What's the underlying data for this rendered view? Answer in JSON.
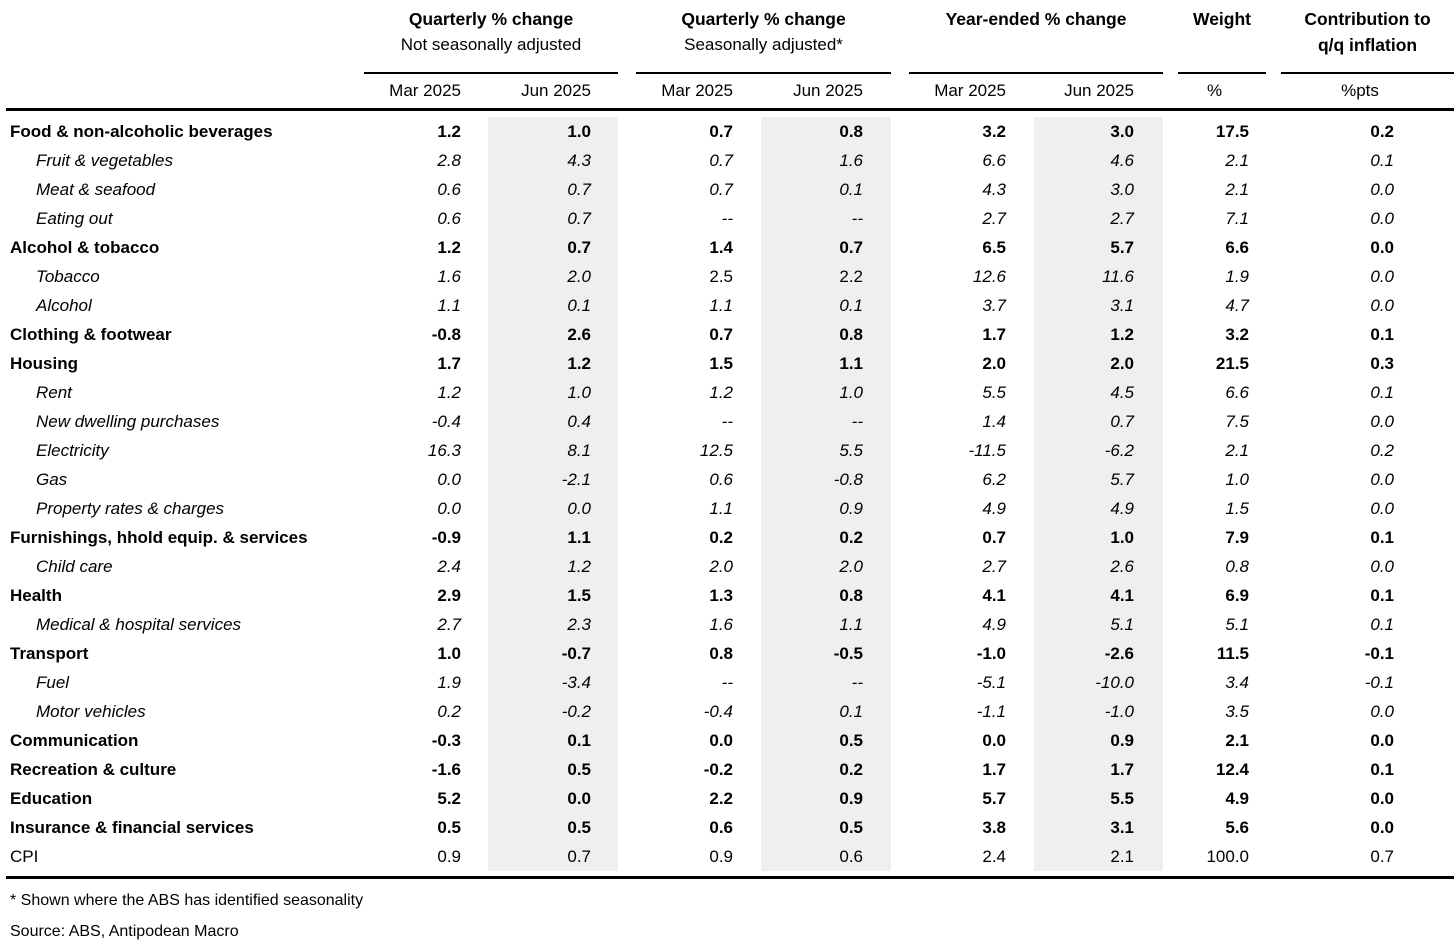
{
  "colors": {
    "shaded_column": "#efefef",
    "text": "#000000",
    "background": "#ffffff"
  },
  "table": {
    "col_keys": [
      "nsa_mar",
      "nsa_jun",
      "sa_mar",
      "sa_jun",
      "ye_mar",
      "ye_jun",
      "weight",
      "contribution"
    ],
    "col_groups": [
      {
        "title_line1": "Quarterly % change",
        "title_line2": "Not seasonally adjusted",
        "sub": [
          "Mar 2025",
          "Jun 2025"
        ]
      },
      {
        "title_line1": "Quarterly % change",
        "title_line2": "Seasonally adjusted*",
        "sub": [
          "Mar 2025",
          "Jun 2025"
        ]
      },
      {
        "title_line1": "Year-ended % change",
        "title_line2": "",
        "sub": [
          "Mar 2025",
          "Jun 2025"
        ]
      },
      {
        "title_line1": "Weight",
        "title_line2": "",
        "sub": [
          "%"
        ]
      },
      {
        "title_line1": "Contribution to",
        "title_line2": "q/q inflation",
        "sub": [
          "%pts"
        ]
      }
    ],
    "rows": [
      {
        "label": "Food & non-alcoholic beverages",
        "emphasis": "bold",
        "values": [
          "1.2",
          "1.0",
          "0.7",
          "0.8",
          "3.2",
          "3.0",
          "17.5",
          "0.2"
        ]
      },
      {
        "label": "Fruit & vegetables",
        "emphasis": "italic",
        "values": [
          "2.8",
          "4.3",
          "0.7",
          "1.6",
          "6.6",
          "4.6",
          "2.1",
          "0.1"
        ]
      },
      {
        "label": "Meat & seafood",
        "emphasis": "italic",
        "values": [
          "0.6",
          "0.7",
          "0.7",
          "0.1",
          "4.3",
          "3.0",
          "2.1",
          "0.0"
        ]
      },
      {
        "label": "Eating out",
        "emphasis": "italic",
        "values": [
          "0.6",
          "0.7",
          "--",
          "--",
          "2.7",
          "2.7",
          "7.1",
          "0.0"
        ]
      },
      {
        "label": "Alcohol & tobacco",
        "emphasis": "bold",
        "values": [
          "1.2",
          "0.7",
          "1.4",
          "0.7",
          "6.5",
          "5.7",
          "6.6",
          "0.0"
        ]
      },
      {
        "label": "Tobacco",
        "emphasis": "italic",
        "sa_plain": true,
        "values": [
          "1.6",
          "2.0",
          "2.5",
          "2.2",
          "12.6",
          "11.6",
          "1.9",
          "0.0"
        ]
      },
      {
        "label": "Alcohol",
        "emphasis": "italic",
        "values": [
          "1.1",
          "0.1",
          "1.1",
          "0.1",
          "3.7",
          "3.1",
          "4.7",
          "0.0"
        ]
      },
      {
        "label": "Clothing & footwear",
        "emphasis": "bold",
        "values": [
          "-0.8",
          "2.6",
          "0.7",
          "0.8",
          "1.7",
          "1.2",
          "3.2",
          "0.1"
        ]
      },
      {
        "label": "Housing",
        "emphasis": "bold",
        "values": [
          "1.7",
          "1.2",
          "1.5",
          "1.1",
          "2.0",
          "2.0",
          "21.5",
          "0.3"
        ]
      },
      {
        "label": "Rent",
        "emphasis": "italic",
        "values": [
          "1.2",
          "1.0",
          "1.2",
          "1.0",
          "5.5",
          "4.5",
          "6.6",
          "0.1"
        ]
      },
      {
        "label": "New dwelling purchases",
        "emphasis": "italic",
        "values": [
          "-0.4",
          "0.4",
          "--",
          "--",
          "1.4",
          "0.7",
          "7.5",
          "0.0"
        ]
      },
      {
        "label": "Electricity",
        "emphasis": "italic",
        "values": [
          "16.3",
          "8.1",
          "12.5",
          "5.5",
          "-11.5",
          "-6.2",
          "2.1",
          "0.2"
        ]
      },
      {
        "label": "Gas",
        "emphasis": "italic",
        "values": [
          "0.0",
          "-2.1",
          "0.6",
          "-0.8",
          "6.2",
          "5.7",
          "1.0",
          "0.0"
        ]
      },
      {
        "label": "Property rates & charges",
        "emphasis": "italic",
        "values": [
          "0.0",
          "0.0",
          "1.1",
          "0.9",
          "4.9",
          "4.9",
          "1.5",
          "0.0"
        ]
      },
      {
        "label": "Furnishings, hhold equip. & services",
        "emphasis": "bold",
        "values": [
          "-0.9",
          "1.1",
          "0.2",
          "0.2",
          "0.7",
          "1.0",
          "7.9",
          "0.1"
        ]
      },
      {
        "label": "Child care",
        "emphasis": "italic",
        "values": [
          "2.4",
          "1.2",
          "2.0",
          "2.0",
          "2.7",
          "2.6",
          "0.8",
          "0.0"
        ]
      },
      {
        "label": "Health",
        "emphasis": "bold",
        "values": [
          "2.9",
          "1.5",
          "1.3",
          "0.8",
          "4.1",
          "4.1",
          "6.9",
          "0.1"
        ]
      },
      {
        "label": "Medical & hospital services",
        "emphasis": "italic",
        "values": [
          "2.7",
          "2.3",
          "1.6",
          "1.1",
          "4.9",
          "5.1",
          "5.1",
          "0.1"
        ]
      },
      {
        "label": "Transport",
        "emphasis": "bold",
        "values": [
          "1.0",
          "-0.7",
          "0.8",
          "-0.5",
          "-1.0",
          "-2.6",
          "11.5",
          "-0.1"
        ]
      },
      {
        "label": "Fuel",
        "emphasis": "italic",
        "values": [
          "1.9",
          "-3.4",
          "--",
          "--",
          "-5.1",
          "-10.0",
          "3.4",
          "-0.1"
        ]
      },
      {
        "label": "Motor vehicles",
        "emphasis": "italic",
        "values": [
          "0.2",
          "-0.2",
          "-0.4",
          "0.1",
          "-1.1",
          "-1.0",
          "3.5",
          "0.0"
        ]
      },
      {
        "label": "Communication",
        "emphasis": "bold",
        "values": [
          "-0.3",
          "0.1",
          "0.0",
          "0.5",
          "0.0",
          "0.9",
          "2.1",
          "0.0"
        ]
      },
      {
        "label": "Recreation & culture",
        "emphasis": "bold",
        "values": [
          "-1.6",
          "0.5",
          "-0.2",
          "0.2",
          "1.7",
          "1.7",
          "12.4",
          "0.1"
        ]
      },
      {
        "label": "Education",
        "emphasis": "bold",
        "values": [
          "5.2",
          "0.0",
          "2.2",
          "0.9",
          "5.7",
          "5.5",
          "4.9",
          "0.0"
        ]
      },
      {
        "label": "Insurance & financial services",
        "emphasis": "bold",
        "values": [
          "0.5",
          "0.5",
          "0.6",
          "0.5",
          "3.8",
          "3.1",
          "5.6",
          "0.0"
        ]
      },
      {
        "label": "CPI",
        "emphasis": "plain",
        "values": [
          "0.9",
          "0.7",
          "0.9",
          "0.6",
          "2.4",
          "2.1",
          "100.0",
          "0.7"
        ]
      }
    ]
  },
  "footnotes": {
    "seasonality_note": "* Shown where the ABS has identified seasonality",
    "source_note": "Source: ABS, Antipodean Macro"
  }
}
